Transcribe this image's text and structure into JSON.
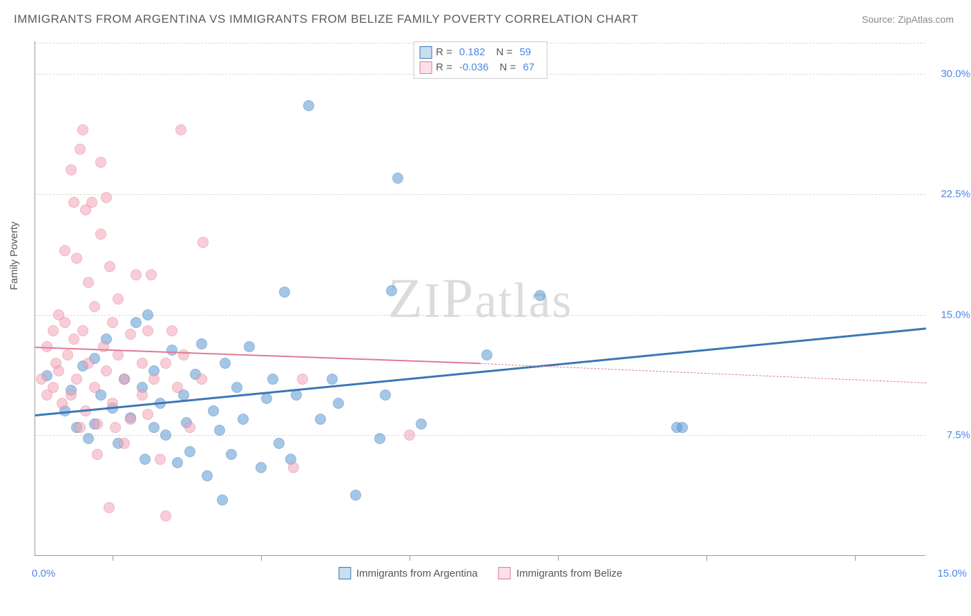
{
  "title": "IMMIGRANTS FROM ARGENTINA VS IMMIGRANTS FROM BELIZE FAMILY POVERTY CORRELATION CHART",
  "source": "Source: ZipAtlas.com",
  "ylabel": "Family Poverty",
  "watermark": "ZIPatlas",
  "chart": {
    "type": "scatter",
    "background_color": "#ffffff",
    "grid_color": "#d8d8d8",
    "axis_color": "#999999",
    "label_color": "#4a86e8",
    "text_color": "#555555",
    "title_fontsize": 17,
    "label_fontsize": 15,
    "xlim": [
      0,
      15
    ],
    "ylim": [
      0,
      32
    ],
    "yticks": [
      {
        "value": 7.5,
        "label": "7.5%"
      },
      {
        "value": 15.0,
        "label": "15.0%"
      },
      {
        "value": 22.5,
        "label": "22.5%"
      },
      {
        "value": 30.0,
        "label": "30.0%"
      }
    ],
    "xticks_minor": [
      1.3,
      3.8,
      6.3,
      8.8,
      11.3,
      13.8
    ],
    "xaxis_labels": {
      "min": "0.0%",
      "max": "15.0%"
    },
    "marker_radius": 8,
    "marker_opacity": 0.55,
    "series": [
      {
        "name": "Immigrants from Argentina",
        "color": "#5b9bd5",
        "stroke": "#3a77b5",
        "R": "0.182",
        "N": "59",
        "trend": {
          "x1": 0,
          "y1": 8.8,
          "x2": 15,
          "y2": 14.2,
          "width": 3,
          "dash_from_x": 15
        },
        "points": [
          [
            0.2,
            11.2
          ],
          [
            0.5,
            9.0
          ],
          [
            0.6,
            10.3
          ],
          [
            0.7,
            8.0
          ],
          [
            0.8,
            11.8
          ],
          [
            0.9,
            7.3
          ],
          [
            1.0,
            12.3
          ],
          [
            1.0,
            8.2
          ],
          [
            1.1,
            10.0
          ],
          [
            1.2,
            13.5
          ],
          [
            1.3,
            9.2
          ],
          [
            1.4,
            7.0
          ],
          [
            1.5,
            11.0
          ],
          [
            1.6,
            8.6
          ],
          [
            1.7,
            14.5
          ],
          [
            1.8,
            10.5
          ],
          [
            1.85,
            6.0
          ],
          [
            1.9,
            15.0
          ],
          [
            2.0,
            8.0
          ],
          [
            2.0,
            11.5
          ],
          [
            2.1,
            9.5
          ],
          [
            2.2,
            7.5
          ],
          [
            2.3,
            12.8
          ],
          [
            2.4,
            5.8
          ],
          [
            2.5,
            10.0
          ],
          [
            2.55,
            8.3
          ],
          [
            2.6,
            6.5
          ],
          [
            2.7,
            11.3
          ],
          [
            2.8,
            13.2
          ],
          [
            2.9,
            5.0
          ],
          [
            3.0,
            9.0
          ],
          [
            3.1,
            7.8
          ],
          [
            3.15,
            3.5
          ],
          [
            3.2,
            12.0
          ],
          [
            3.3,
            6.3
          ],
          [
            3.4,
            10.5
          ],
          [
            3.5,
            8.5
          ],
          [
            3.6,
            13.0
          ],
          [
            3.8,
            5.5
          ],
          [
            3.9,
            9.8
          ],
          [
            4.0,
            11.0
          ],
          [
            4.1,
            7.0
          ],
          [
            4.2,
            16.4
          ],
          [
            4.3,
            6.0
          ],
          [
            4.4,
            10.0
          ],
          [
            4.6,
            28.0
          ],
          [
            4.8,
            8.5
          ],
          [
            5.0,
            11.0
          ],
          [
            5.1,
            9.5
          ],
          [
            5.4,
            3.8
          ],
          [
            5.8,
            7.3
          ],
          [
            5.9,
            10.0
          ],
          [
            6.0,
            16.5
          ],
          [
            6.1,
            23.5
          ],
          [
            6.5,
            8.2
          ],
          [
            7.6,
            12.5
          ],
          [
            8.5,
            16.2
          ],
          [
            10.8,
            8.0
          ],
          [
            10.9,
            8.0
          ]
        ]
      },
      {
        "name": "Immigrants from Belize",
        "color": "#f4a6b7",
        "stroke": "#e07a92",
        "R": "-0.036",
        "N": "67",
        "trend": {
          "x1": 0,
          "y1": 13.0,
          "x2": 7.5,
          "y2": 12.0,
          "dash_to_x": 15,
          "dash_to_y": 10.8,
          "width": 2
        },
        "points": [
          [
            0.1,
            11.0
          ],
          [
            0.2,
            13.0
          ],
          [
            0.2,
            10.0
          ],
          [
            0.3,
            14.0
          ],
          [
            0.3,
            10.5
          ],
          [
            0.35,
            12.0
          ],
          [
            0.4,
            15.0
          ],
          [
            0.4,
            11.5
          ],
          [
            0.45,
            9.5
          ],
          [
            0.5,
            14.5
          ],
          [
            0.5,
            19.0
          ],
          [
            0.55,
            12.5
          ],
          [
            0.6,
            10.0
          ],
          [
            0.6,
            24.0
          ],
          [
            0.65,
            22.0
          ],
          [
            0.65,
            13.5
          ],
          [
            0.7,
            18.5
          ],
          [
            0.7,
            11.0
          ],
          [
            0.75,
            25.3
          ],
          [
            0.75,
            8.0
          ],
          [
            0.8,
            26.5
          ],
          [
            0.8,
            14.0
          ],
          [
            0.85,
            21.5
          ],
          [
            0.85,
            9.0
          ],
          [
            0.9,
            17.0
          ],
          [
            0.9,
            12.0
          ],
          [
            0.95,
            22.0
          ],
          [
            1.0,
            10.5
          ],
          [
            1.0,
            15.5
          ],
          [
            1.05,
            8.2
          ],
          [
            1.05,
            6.3
          ],
          [
            1.1,
            20.0
          ],
          [
            1.1,
            24.5
          ],
          [
            1.15,
            13.0
          ],
          [
            1.2,
            22.3
          ],
          [
            1.2,
            11.5
          ],
          [
            1.24,
            3.0
          ],
          [
            1.25,
            18.0
          ],
          [
            1.3,
            9.5
          ],
          [
            1.3,
            14.5
          ],
          [
            1.35,
            8.0
          ],
          [
            1.4,
            12.5
          ],
          [
            1.4,
            16.0
          ],
          [
            1.5,
            7.0
          ],
          [
            1.5,
            11.0
          ],
          [
            1.6,
            13.8
          ],
          [
            1.6,
            8.5
          ],
          [
            1.7,
            17.5
          ],
          [
            1.8,
            10.0
          ],
          [
            1.8,
            12.0
          ],
          [
            1.9,
            8.8
          ],
          [
            1.9,
            14.0
          ],
          [
            1.95,
            17.5
          ],
          [
            2.0,
            11.0
          ],
          [
            2.1,
            6.0
          ],
          [
            2.2,
            2.5
          ],
          [
            2.2,
            12.0
          ],
          [
            2.3,
            14.0
          ],
          [
            2.45,
            26.5
          ],
          [
            2.4,
            10.5
          ],
          [
            2.5,
            12.5
          ],
          [
            2.6,
            8.0
          ],
          [
            2.82,
            19.5
          ],
          [
            2.8,
            11.0
          ],
          [
            4.35,
            5.5
          ],
          [
            4.5,
            11.0
          ],
          [
            6.3,
            7.5
          ]
        ]
      }
    ]
  }
}
